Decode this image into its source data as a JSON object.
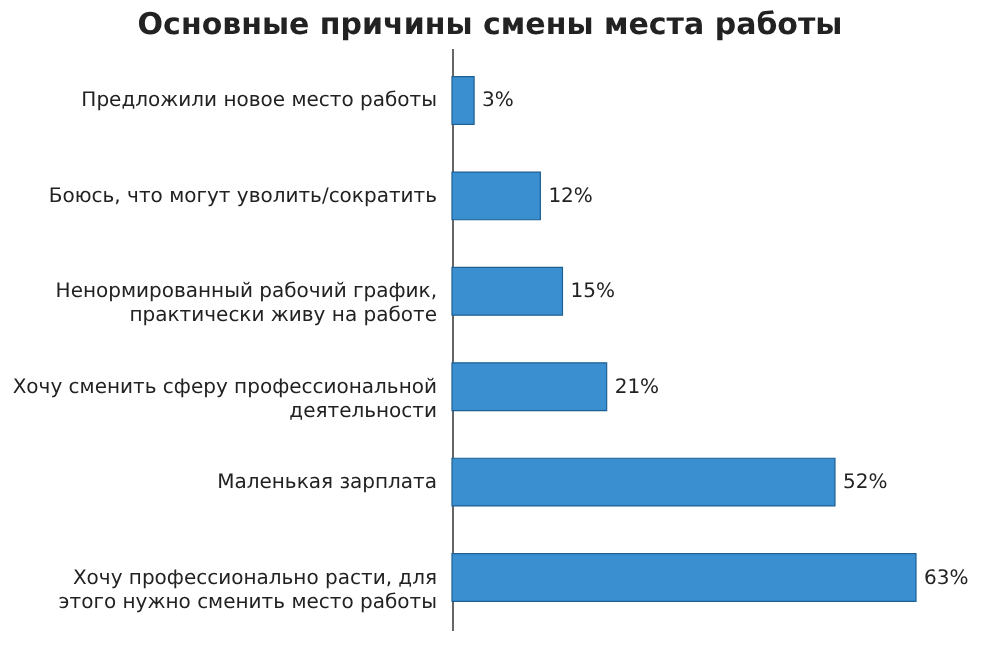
{
  "chart_data": {
    "type": "bar",
    "orientation": "horizontal",
    "title": "Основные причины смены места работы",
    "categories": [
      "Предложили новое место работы",
      "Боюсь, что могут уволить/сократить",
      "Ненормированный рабочий график, практически живу на работе",
      "Хочу сменить сферу профессиональной деятельности",
      "Маленькая зарплата",
      "Хочу профессионально расти, для этого нужно сменить место работы"
    ],
    "values": [
      3,
      12,
      15,
      21,
      52,
      63
    ],
    "value_labels": [
      "3%",
      "12%",
      "15%",
      "21%",
      "52%",
      "63%"
    ],
    "color": "#3a8fd0",
    "grid": false
  }
}
